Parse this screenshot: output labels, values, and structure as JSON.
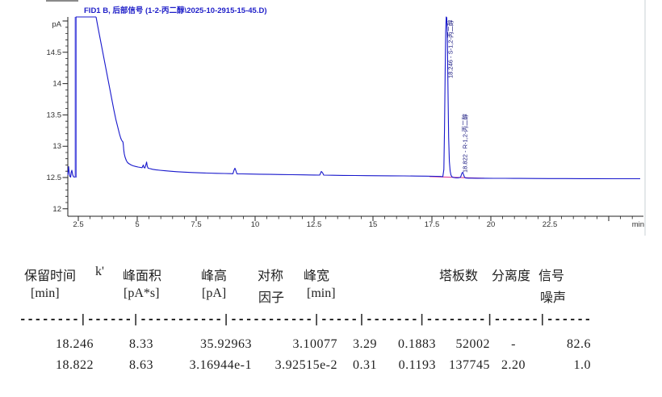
{
  "chart": {
    "title": "FID1 B, 后部信号 (1-2-丙二醇\\2025-10-2915-15-45.D)",
    "y_axis_unit": "pA",
    "x_axis_unit": "min",
    "y_ticks": [
      "14.5",
      "14",
      "13.5",
      "13",
      "12.5",
      "12"
    ],
    "x_ticks": [
      "2.5",
      "5",
      "7.5",
      "10",
      "12.5",
      "15",
      "17.5",
      "20",
      "22.5"
    ],
    "peak_labels": [
      "18.246 - S-1,2-丙二醇",
      "18.822 - R-1,2-丙二醇"
    ],
    "trace_color": "#1818cc",
    "integration_baseline_color": "#e0409a"
  },
  "chart_data": {
    "type": "line",
    "title": "FID1 B, 后部信号 (1-2-丙二醇\\2025-10-2915-15-45.D)",
    "xlabel": "min",
    "ylabel": "pA",
    "x_ticks": [
      2.5,
      5,
      7.5,
      10,
      12.5,
      15,
      17.5,
      20,
      22.5
    ],
    "y_ticks": [
      12,
      12.5,
      13,
      13.5,
      14,
      14.5
    ],
    "xlim": [
      2.0,
      26.5
    ],
    "ylim": [
      12,
      15
    ],
    "grid": false,
    "baseline_pA": 12.55,
    "features": [
      {
        "kind": "minor-blip",
        "time_min": 2.2,
        "apex_pA": 12.8
      },
      {
        "kind": "solvent-front-offscale",
        "time_min": 2.45,
        "apex_pA": ">15 (clipped at plot top)"
      },
      {
        "kind": "decaying-tail",
        "from_min": 3.2,
        "to_min": 6.5,
        "from_pA": 15.0,
        "to_pA": 12.7
      },
      {
        "kind": "minor-peak",
        "time_min": 9.1,
        "apex_pA": 12.73
      },
      {
        "kind": "minor-peak",
        "time_min": 12.9,
        "apex_pA": 12.66
      },
      {
        "kind": "peak",
        "time_min": 18.246,
        "label": "S-1,2-丙二醇",
        "height_pA": 3.10077,
        "clipped_at_top": true
      },
      {
        "kind": "peak",
        "time_min": 18.822,
        "label": "R-1,2-丙二醇",
        "height_pA": 0.0392515
      }
    ]
  },
  "table": {
    "headers_line1": [
      "保留时间",
      "k'",
      "峰面积",
      "峰高",
      "对称",
      "峰宽",
      "塔板数",
      "分离度",
      "信号"
    ],
    "headers_line2": [
      "[min]",
      "[pA*s]",
      "[pA]",
      "因子",
      "[min]",
      "噪声"
    ],
    "separator": "--------|------|-----------|-----------|-----|-------|--------|------|------",
    "rows": [
      [
        "18.246",
        "8.33",
        "35.92963",
        "3.10077",
        "3.29",
        "0.1883",
        "52002",
        "-",
        "82.6"
      ],
      [
        "18.822",
        "8.63",
        "3.16944e-1",
        "3.92515e-2",
        "0.31",
        "0.1193",
        "137745",
        "2.20",
        "1.0"
      ]
    ]
  }
}
